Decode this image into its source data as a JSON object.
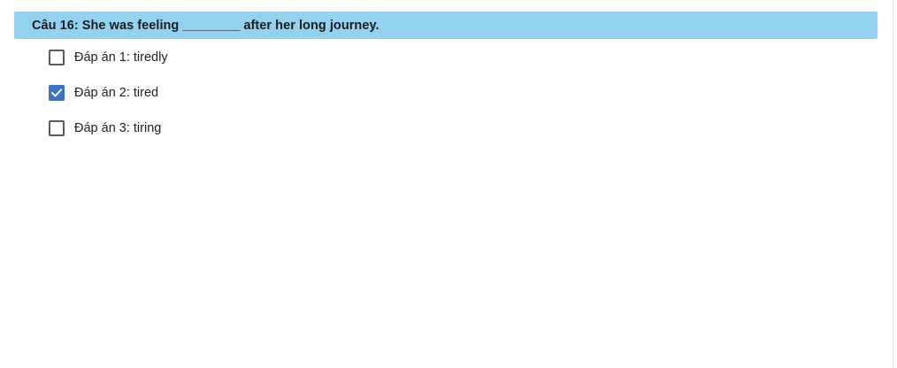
{
  "question": {
    "text": "Câu 16: She was feeling ________ after her long journey."
  },
  "answers": [
    {
      "label": "Đáp án 1: tiredly",
      "checked": false
    },
    {
      "label": "Đáp án 2: tired",
      "checked": true
    },
    {
      "label": "Đáp án 3: tiring",
      "checked": false
    }
  ],
  "colors": {
    "question_bar_bg": "#92d2ee",
    "checkbox_checked": "#3b73c8",
    "checkbox_border": "#5a5a5a"
  },
  "icons": {
    "checked": "checkmark-icon"
  }
}
